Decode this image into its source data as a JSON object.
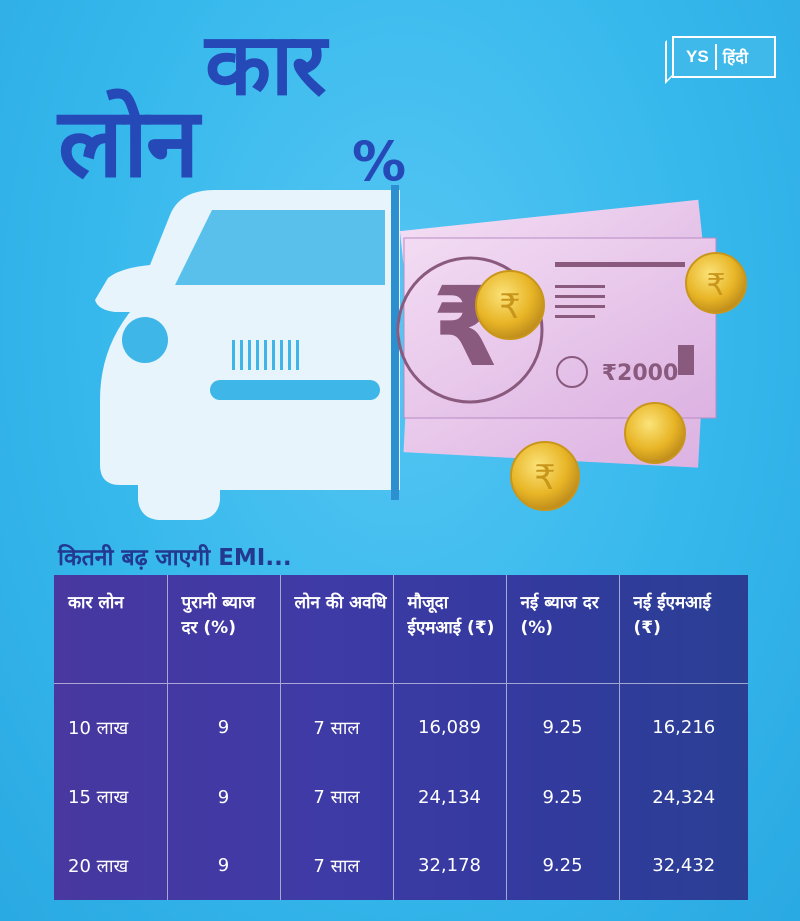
{
  "brand": {
    "ys": "YS",
    "hindi": "हिंदी"
  },
  "title": {
    "line1": "कार",
    "line2": "लोन",
    "percent": "%"
  },
  "note": {
    "denomination": "₹2000",
    "rupee_symbol": "₹"
  },
  "subtitle": "कितनी बढ़ जाएगी EMI...",
  "table": {
    "headers": [
      "कार लोन",
      "पुरानी ब्याज दर (%)",
      "लोन की अवधि",
      "मौजूदा ईएमआई (₹)",
      "नई ब्याज दर (%)",
      "नई ईएमआई (₹)"
    ],
    "rows": [
      [
        "10 लाख",
        "9",
        "7 साल",
        "16,089",
        "9.25",
        "16,216"
      ],
      [
        "15 लाख",
        "9",
        "7 साल",
        "24,134",
        "9.25",
        "24,324"
      ],
      [
        "20 लाख",
        "9",
        "7 साल",
        "32,178",
        "9.25",
        "32,432"
      ]
    ]
  },
  "colors": {
    "background": "#36b8ec",
    "title": "#2649b8",
    "table": "#3e3aa6",
    "note": "#e9c8ee",
    "coin": "#e8b526"
  }
}
